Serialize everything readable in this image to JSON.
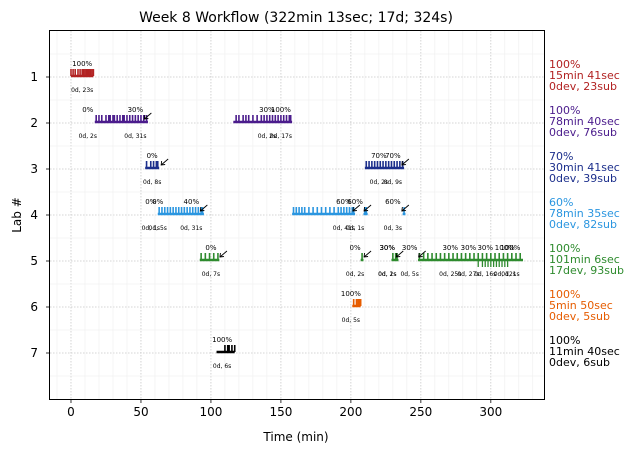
{
  "chart_data": {
    "type": "timeline",
    "title": "Week 8 Workflow (322min 13sec; 17d; 324s)",
    "xlabel": "Time (min)",
    "ylabel": "Lab #",
    "xlim": [
      -15,
      338
    ],
    "ylim": [
      8,
      0
    ],
    "xticks": [
      0,
      50,
      100,
      150,
      200,
      250,
      300
    ],
    "yticks": [
      1,
      2,
      3,
      4,
      5,
      6,
      7
    ],
    "grid": true,
    "labs": [
      {
        "lab": 1,
        "color": "#b22222",
        "summary": [
          "100%",
          "15min 41sec",
          "0dev, 23sub"
        ],
        "segments": [
          [
            0,
            16
          ]
        ],
        "submissions": [
          0,
          1.5,
          3,
          5,
          6.5,
          8,
          9,
          10,
          11,
          12,
          13,
          14,
          15,
          16
        ],
        "minor_ticks": [],
        "annotations": [
          {
            "x": 8,
            "pct": "100%",
            "dur": "0d, 23s",
            "arrow": false
          }
        ]
      },
      {
        "lab": 2,
        "color": "#4b1c8c",
        "summary": [
          "100%",
          "78min 40sec",
          "0dev, 76sub"
        ],
        "segments": [
          [
            17,
            55
          ],
          [
            116,
            158
          ]
        ],
        "submissions": [
          18,
          20,
          22,
          25,
          27,
          28,
          30,
          31,
          33,
          35,
          37,
          38,
          40,
          42,
          44,
          46,
          48,
          50,
          52,
          54,
          118,
          120,
          123,
          125,
          127,
          130,
          133,
          136,
          138,
          140,
          142,
          144,
          146,
          148,
          150,
          152,
          154,
          156,
          157
        ],
        "minor_ticks": [],
        "annotations": [
          {
            "x": 12,
            "pct": "0%",
            "dur": "0d, 2s",
            "arrow": false
          },
          {
            "x": 46,
            "pct": "30%",
            "dur": "0d, 31s",
            "arrow": true
          },
          {
            "x": 140,
            "pct": "30%",
            "dur": "0d, 2s",
            "arrow": false
          },
          {
            "x": 150,
            "pct": "100%",
            "dur": "0d, 17s",
            "arrow": false
          }
        ]
      },
      {
        "lab": 3,
        "color": "#1c2f8c",
        "summary": [
          "70%",
          "30min 41sec",
          "0dev, 39sub"
        ],
        "segments": [
          [
            53,
            63
          ],
          [
            210,
            238
          ]
        ],
        "submissions": [
          54,
          57,
          59,
          61,
          62,
          211,
          213,
          215,
          217,
          219,
          221,
          223,
          225,
          227,
          229,
          231,
          233,
          235,
          237
        ],
        "minor_ticks": [],
        "annotations": [
          {
            "x": 58,
            "pct": "0%",
            "dur": "0d, 8s",
            "arrow": true
          },
          {
            "x": 220,
            "pct": "70%",
            "dur": "0d, 2s",
            "arrow": false
          },
          {
            "x": 230,
            "pct": "70%",
            "dur": "0d, 9s",
            "arrow": true
          }
        ]
      },
      {
        "lab": 4,
        "color": "#2b96e0",
        "summary": [
          "60%",
          "78min 35sec",
          "0dev, 82sub"
        ],
        "segments": [
          [
            62,
            95
          ],
          [
            158,
            203
          ],
          [
            209,
            212
          ],
          [
            237,
            239
          ]
        ],
        "submissions": [
          63,
          65,
          67,
          69,
          71,
          73,
          75,
          77,
          79,
          81,
          83,
          85,
          87,
          89,
          91,
          93,
          94,
          159,
          161,
          163,
          165,
          167,
          170,
          173,
          176,
          179,
          182,
          185,
          188,
          191,
          193,
          195,
          197,
          199,
          201,
          202,
          210,
          211,
          238
        ],
        "minor_ticks": [],
        "annotations": [
          {
            "x": 57,
            "pct": "0%",
            "dur": "0d, 1s",
            "arrow": false
          },
          {
            "x": 62,
            "pct": "0%",
            "dur": "0d, 5s",
            "arrow": false
          },
          {
            "x": 86,
            "pct": "40%",
            "dur": "0d, 31s",
            "arrow": true
          },
          {
            "x": 195,
            "pct": "60%",
            "dur": "0d, 41s",
            "arrow": true
          },
          {
            "x": 203,
            "pct": "60%",
            "dur": "0d, 1s",
            "arrow": true
          },
          {
            "x": 230,
            "pct": "60%",
            "dur": "0d, 3s",
            "arrow": true
          }
        ]
      },
      {
        "lab": 5,
        "color": "#2e8b2e",
        "summary": [
          "100%",
          "101min 6sec",
          "17dev, 93sub"
        ],
        "segments": [
          [
            92,
            106
          ],
          [
            207,
            209
          ],
          [
            229,
            234
          ],
          [
            248,
            323
          ]
        ],
        "submissions": [
          93,
          96,
          99,
          102,
          105,
          208,
          230,
          232,
          233,
          249,
          252,
          255,
          258,
          261,
          264,
          267,
          270,
          273,
          276,
          279,
          282,
          285,
          288,
          291,
          294,
          297,
          300,
          303,
          306,
          309,
          312,
          315,
          318,
          321
        ],
        "minor_ticks": [
          291,
          294,
          296,
          298,
          300,
          302,
          304,
          306,
          308,
          310,
          312
        ],
        "annotations": [
          {
            "x": 100,
            "pct": "0%",
            "dur": "0d, 7s",
            "arrow": true
          },
          {
            "x": 203,
            "pct": "0%",
            "dur": "0d, 2s",
            "arrow": true
          },
          {
            "x": 226,
            "pct": "30%",
            "dur": "0d, 2s",
            "arrow": false
          },
          {
            "x": 226,
            "pct": "30%",
            "dur": "0d, 1s",
            "arrow": true
          },
          {
            "x": 242,
            "pct": "30%",
            "dur": "0d, 5s",
            "arrow": true
          },
          {
            "x": 271,
            "pct": "30%",
            "dur": "0d, 25s",
            "arrow": false
          },
          {
            "x": 284,
            "pct": "30%",
            "dur": "0d, 27s",
            "arrow": false
          },
          {
            "x": 296,
            "pct": "30%",
            "dur": "0d, 16s",
            "arrow": false
          },
          {
            "x": 310,
            "pct": "100%",
            "dur": "0d, 12s",
            "arrow": false
          },
          {
            "x": 314,
            "pct": "100%",
            "dur": "0d, 1s",
            "arrow": false
          }
        ]
      },
      {
        "lab": 6,
        "color": "#e65c00",
        "summary": [
          "100%",
          "5min 50sec",
          "0dev, 5sub"
        ],
        "segments": [
          [
            201,
            207
          ]
        ],
        "submissions": [
          202,
          204,
          205,
          206,
          207
        ],
        "minor_ticks": [],
        "annotations": [
          {
            "x": 200,
            "pct": "100%",
            "dur": "0d, 5s",
            "arrow": false
          }
        ]
      },
      {
        "lab": 7,
        "color": "#000000",
        "summary": [
          "100%",
          "11min 40sec",
          "0dev, 6sub"
        ],
        "segments": [
          [
            104,
            117
          ]
        ],
        "submissions": [
          110,
          112,
          113,
          115,
          117
        ],
        "minor_ticks": [],
        "annotations": [
          {
            "x": 108,
            "pct": "100%",
            "dur": "0d, 6s",
            "arrow": false
          }
        ]
      }
    ]
  }
}
